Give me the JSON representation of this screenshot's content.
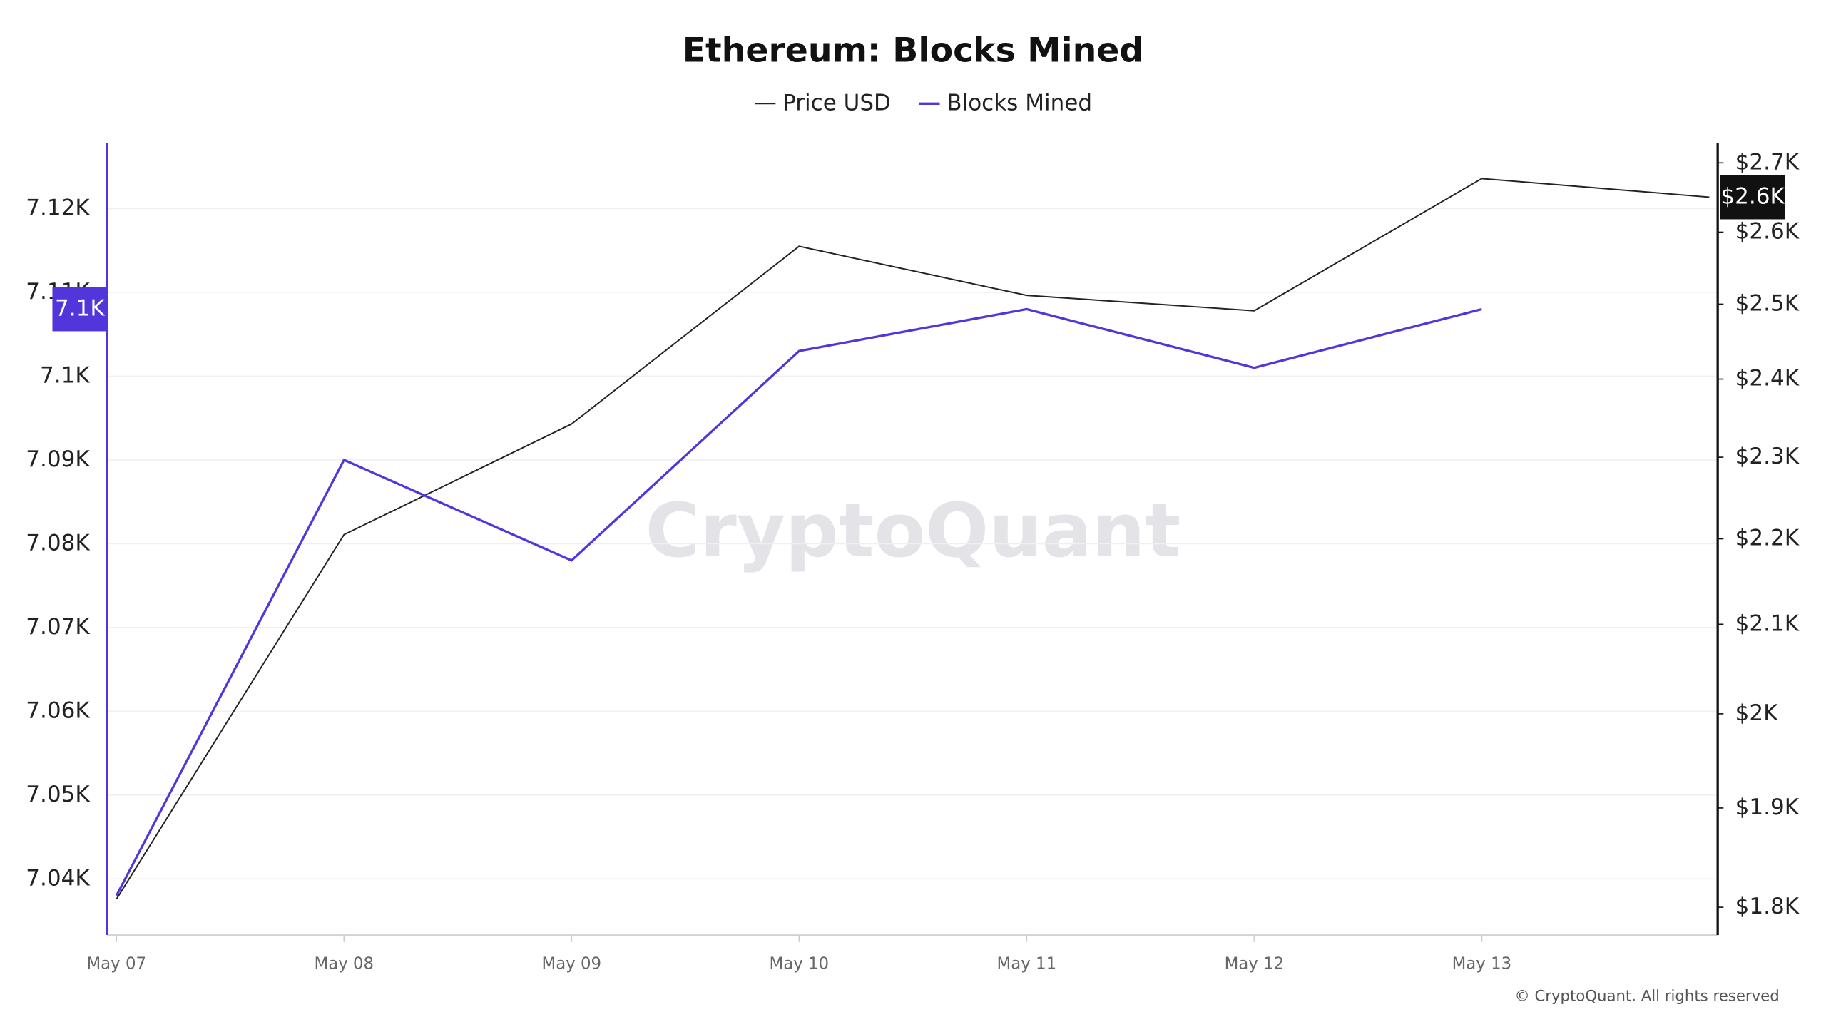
{
  "chart_data": {
    "type": "line",
    "title": "Ethereum: Blocks Mined",
    "categories": [
      "May 07",
      "May 08",
      "May 09",
      "May 10",
      "May 11",
      "May 12",
      "May 13",
      null
    ],
    "series": [
      {
        "name": "Price USD",
        "color": "#222222",
        "axis": "y2",
        "values": [
          1808,
          2205,
          2342,
          2580,
          2512,
          2491,
          2677,
          2650
        ],
        "value_labels": [
          null,
          null,
          null,
          null,
          null,
          null,
          null,
          "$2.6K"
        ]
      },
      {
        "name": "Blocks Mined",
        "color": "#5236dc",
        "values": [
          7038,
          7090,
          7078,
          7103,
          7108,
          7101,
          7108,
          null
        ],
        "value_labels": [
          null,
          null,
          null,
          null,
          null,
          null,
          "7.1K",
          null
        ]
      }
    ],
    "ylim": [
      7033.3,
      7127.8
    ],
    "yticks": [
      {
        "value": 7040,
        "label": "7.04K"
      },
      {
        "value": 7050,
        "label": "7.05K"
      },
      {
        "value": 7060,
        "label": "7.06K"
      },
      {
        "value": 7070,
        "label": "7.07K"
      },
      {
        "value": 7080,
        "label": "7.08K"
      },
      {
        "value": 7090,
        "label": "7.09K"
      },
      {
        "value": 7100,
        "label": "7.1K"
      },
      {
        "value": 7110,
        "label": "7.11K"
      },
      {
        "value": 7120,
        "label": "7.12K"
      }
    ],
    "y2lim": [
      1773,
      2729
    ],
    "y2ticks": [
      {
        "value": 1800,
        "label": "$1.8K"
      },
      {
        "value": 1900,
        "label": "$1.9K"
      },
      {
        "value": 2000,
        "label": "$2K"
      },
      {
        "value": 2100,
        "label": "$2.1K"
      },
      {
        "value": 2200,
        "label": "$2.2K"
      },
      {
        "value": 2300,
        "label": "$2.3K"
      },
      {
        "value": 2400,
        "label": "$2.4K"
      },
      {
        "value": 2500,
        "label": "$2.5K"
      },
      {
        "value": 2600,
        "label": "$2.6K"
      },
      {
        "value": 2700,
        "label": "$2.7K"
      }
    ],
    "y2log": true,
    "grid": true,
    "legend": "top",
    "watermark": "CryptoQuant",
    "credit": "© CryptoQuant. All rights reserved"
  }
}
